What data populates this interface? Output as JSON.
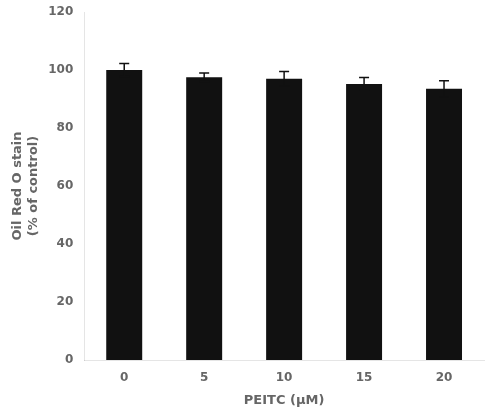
{
  "chart_data": {
    "type": "bar",
    "categories": [
      "0",
      "5",
      "10",
      "15",
      "20"
    ],
    "values": [
      100.0,
      97.5,
      97.0,
      95.2,
      93.5
    ],
    "errors": [
      2.2,
      1.5,
      2.5,
      2.2,
      2.8
    ],
    "color": "#111111",
    "xlabel": "PEITC (μM)",
    "ylabel": "Oil Red O stain\n(% of control)",
    "ylim": [
      0,
      120
    ],
    "yticks": [
      0,
      20,
      40,
      60,
      80,
      100,
      120
    ],
    "grid": false
  }
}
